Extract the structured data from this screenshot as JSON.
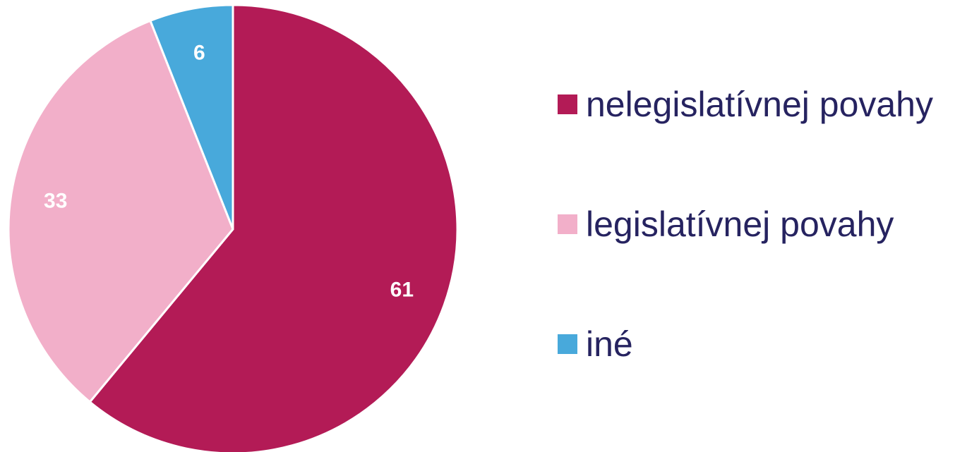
{
  "chart_data": {
    "type": "pie",
    "title": "",
    "start_angle_deg": 0,
    "direction": "clockwise",
    "slices": [
      {
        "label": "nelegislatívnej povahy",
        "value": 61,
        "display": "61",
        "color": "#b31b56"
      },
      {
        "label": "legislatívnej povahy",
        "value": 33,
        "display": "33",
        "color": "#f2afc9"
      },
      {
        "label": "iné",
        "value": 6,
        "display": "6",
        "color": "#48a9db"
      }
    ],
    "legend_position": "right",
    "legend_text_color": "#262360",
    "label_color": "#ffffff",
    "slice_border_color": "#ffffff"
  }
}
